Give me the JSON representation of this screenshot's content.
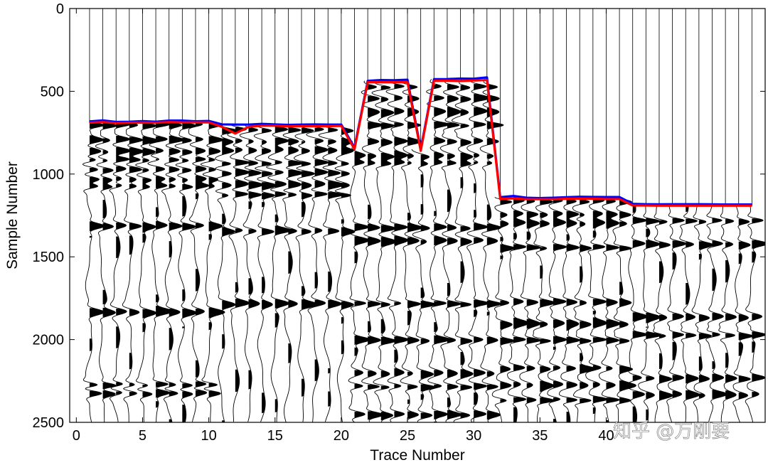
{
  "chart_data": {
    "type": "scatter",
    "subtype": "seismic-wiggle-traces",
    "title": "",
    "xlabel": "Trace Number",
    "ylabel": "Sample Number",
    "xlim": [
      -0.5,
      52
    ],
    "ylim": [
      0,
      2500
    ],
    "y_reversed": true,
    "xticks": [
      0,
      5,
      10,
      15,
      20,
      25,
      30,
      35,
      40
    ],
    "yticks": [
      0,
      500,
      1000,
      1500,
      2000,
      2500
    ],
    "grid": false,
    "legend": "none",
    "trace_count": 51,
    "series": [
      {
        "color": "#0000ff",
        "x": [
          1,
          2,
          3,
          4,
          5,
          6,
          7,
          8,
          9,
          10,
          11,
          12,
          13,
          14,
          15,
          16,
          17,
          18,
          19,
          20,
          21,
          22,
          23,
          24,
          25,
          26,
          27,
          28,
          29,
          30,
          31,
          32,
          33,
          34,
          35,
          36,
          37,
          38,
          39,
          40,
          41,
          42,
          43,
          44,
          45,
          46,
          47,
          48,
          49,
          50,
          51
        ],
        "y": [
          682,
          676,
          685,
          684,
          680,
          684,
          677,
          677,
          681,
          679,
          700,
          701,
          701,
          697,
          700,
          703,
          701,
          700,
          701,
          701,
          840,
          437,
          432,
          433,
          430,
          850,
          427,
          426,
          423,
          424,
          416,
          1140,
          1132,
          1143,
          1145,
          1143,
          1140,
          1137,
          1138,
          1139,
          1139,
          1180,
          1182,
          1183,
          1182,
          1182,
          1182,
          1183,
          1184,
          1184,
          1184
        ]
      },
      {
        "color": "#ff0000",
        "x": [
          1,
          2,
          3,
          4,
          5,
          6,
          7,
          8,
          9,
          10,
          11,
          12,
          13,
          14,
          15,
          16,
          17,
          18,
          19,
          20,
          21,
          22,
          23,
          24,
          25,
          26,
          27,
          28,
          29,
          30,
          31,
          32,
          33,
          34,
          35,
          36,
          37,
          38,
          39,
          40,
          41,
          42,
          43,
          44,
          45,
          46,
          47,
          48,
          49,
          50,
          51
        ],
        "y": [
          690,
          686,
          692,
          690,
          689,
          690,
          686,
          688,
          688,
          688,
          715,
          755,
          715,
          708,
          708,
          712,
          711,
          711,
          711,
          709,
          850,
          445,
          445,
          445,
          445,
          860,
          437,
          436,
          438,
          435,
          432,
          1150,
          1147,
          1152,
          1152,
          1152,
          1149,
          1148,
          1149,
          1151,
          1151,
          1190,
          1190,
          1191,
          1191,
          1191,
          1191,
          1191,
          1191,
          1191,
          1191
        ]
      }
    ],
    "trace_reflectors": [
      {
        "x_from": 1,
        "x_to": 10,
        "y": [
          700,
          790,
          860,
          910,
          970,
          1030,
          1070,
          1310,
          1830,
          2270,
          2320
        ]
      },
      {
        "x_from": 11,
        "x_to": 20,
        "y": [
          730,
          800,
          850,
          930,
          990,
          1060,
          1120,
          1340,
          1780
        ]
      },
      {
        "x_from": 21,
        "x_to": 31,
        "y": [
          470,
          540,
          620,
          700,
          800,
          890,
          930,
          1320,
          1400,
          1780,
          2000,
          2200,
          2280,
          2450
        ]
      },
      {
        "x_from": 32,
        "x_to": 41,
        "y": [
          1160,
          1240,
          1290,
          1440,
          1770,
          1900,
          2000,
          2170,
          2270,
          2360
        ]
      },
      {
        "x_from": 42,
        "x_to": 51,
        "y": [
          1280,
          1420,
          1860,
          1970,
          2230,
          2330
        ]
      }
    ]
  },
  "watermark": {
    "text": "知乎 @万刚要"
  }
}
